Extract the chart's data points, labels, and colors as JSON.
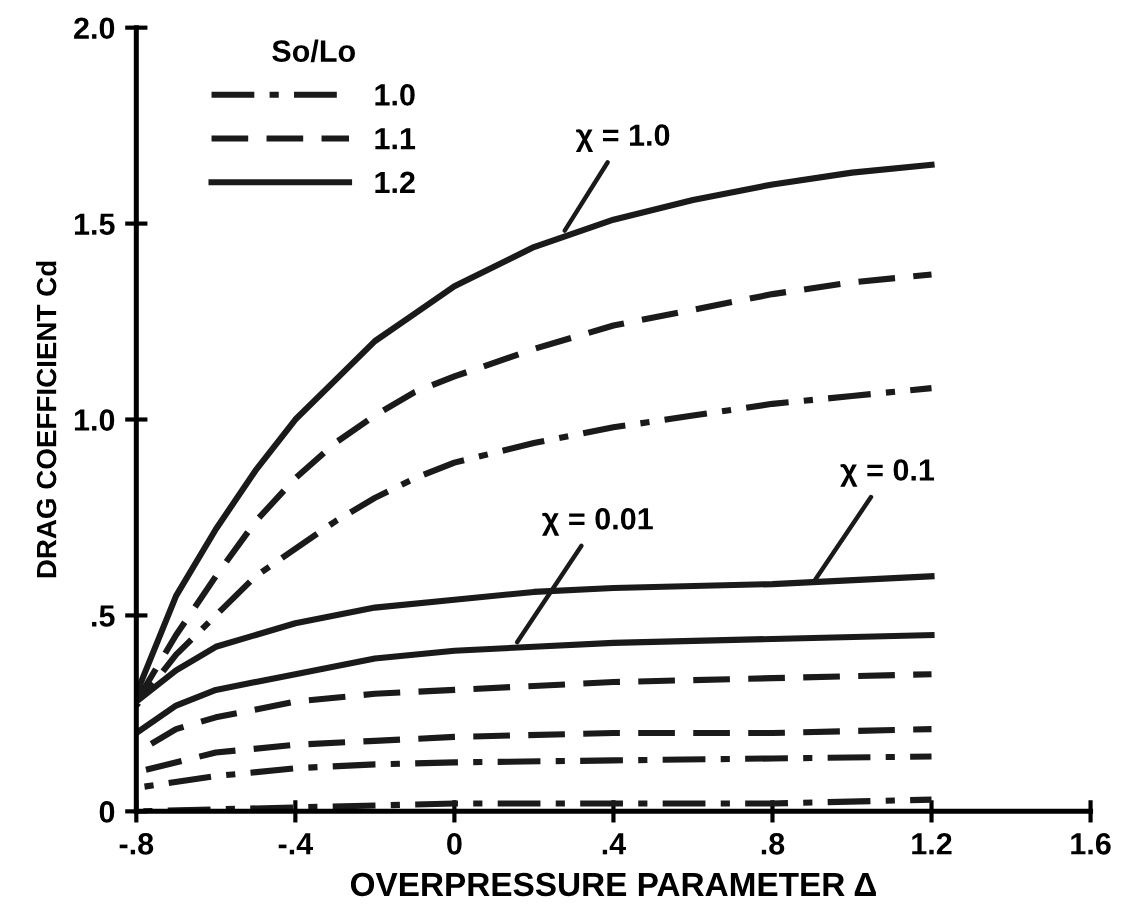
{
  "chart_data": {
    "type": "line",
    "xlabel": "OVERPRESSURE PARAMETER Δ",
    "ylabel": "DRAG COEFFICIENT Cd",
    "legend_title": "So/Lo",
    "legend": "top left",
    "grid": false,
    "marker": "none",
    "xlim": [
      -0.8,
      1.6
    ],
    "xticks": [
      {
        "value": -0.8,
        "label": "-.8"
      },
      {
        "value": -0.4,
        "label": "-.4"
      },
      0,
      {
        "value": 0.4,
        "label": ".4"
      },
      {
        "value": 0.8,
        "label": ".8"
      },
      1.2,
      1.6
    ],
    "ylim": [
      0,
      2.0
    ],
    "yticks": [
      0,
      {
        "value": 0.5,
        "label": ".5"
      },
      {
        "value": 1.0,
        "label": "1.0"
      },
      1.5,
      {
        "value": 2.0,
        "label": "2.0"
      }
    ],
    "series": [
      {
        "name": "1.0",
        "color": "#1a1a1a",
        "line_style": "dashdot",
        "x": [
          -0.8,
          -0.7,
          -0.6,
          -0.5,
          -0.4,
          -0.3,
          -0.2,
          -0.1,
          0,
          0.2,
          0.4,
          0.6,
          0.8,
          1.0,
          1.2
        ],
        "values": [
          0.27,
          0.4,
          0.5,
          0.6,
          0.67,
          0.74,
          0.8,
          0.85,
          0.89,
          0.94,
          0.98,
          1.01,
          1.04,
          1.06,
          1.08
        ]
      },
      {
        "name": "1.1",
        "color": "#1a1a1a",
        "line_style": "dashed",
        "x": [
          -0.8,
          -0.7,
          -0.6,
          -0.5,
          -0.4,
          -0.3,
          -0.2,
          -0.1,
          0,
          0.2,
          0.4,
          0.6,
          0.8,
          1.0,
          1.2
        ],
        "values": [
          0.28,
          0.45,
          0.6,
          0.74,
          0.85,
          0.94,
          1.01,
          1.07,
          1.11,
          1.18,
          1.24,
          1.28,
          1.32,
          1.35,
          1.37
        ]
      },
      {
        "name": "1.2",
        "color": "#1a1a1a",
        "line_style": "solid",
        "x": [
          -0.8,
          -0.7,
          -0.6,
          -0.5,
          -0.4,
          -0.3,
          -0.2,
          -0.1,
          0,
          0.2,
          0.4,
          0.6,
          0.8,
          1.0,
          1.2
        ],
        "values": [
          0.3,
          0.55,
          0.72,
          0.87,
          1.0,
          1.1,
          1.2,
          1.27,
          1.34,
          1.44,
          1.51,
          1.56,
          1.6,
          1.63,
          1.65
        ]
      },
      {
        "color": "#1a1a1a",
        "line_style": "solid",
        "x": [
          -0.8,
          -0.7,
          -0.6,
          -0.4,
          -0.2,
          0,
          0.2,
          0.4,
          0.8,
          1.2
        ],
        "values": [
          0.28,
          0.36,
          0.42,
          0.48,
          0.52,
          0.54,
          0.56,
          0.57,
          0.58,
          0.6
        ]
      },
      {
        "color": "#1a1a1a",
        "line_style": "solid",
        "x": [
          -0.8,
          -0.7,
          -0.6,
          -0.4,
          -0.2,
          0,
          0.2,
          0.4,
          0.8,
          1.2
        ],
        "values": [
          0.2,
          0.27,
          0.31,
          0.35,
          0.39,
          0.41,
          0.42,
          0.43,
          0.44,
          0.45
        ]
      },
      {
        "color": "#1a1a1a",
        "line_style": "dashed",
        "x": [
          -0.8,
          -0.7,
          -0.6,
          -0.4,
          -0.2,
          0,
          0.2,
          0.4,
          0.8,
          1.2
        ],
        "values": [
          0.15,
          0.21,
          0.24,
          0.28,
          0.3,
          0.31,
          0.32,
          0.33,
          0.34,
          0.35
        ]
      },
      {
        "color": "#1a1a1a",
        "line_style": "dashed",
        "x": [
          -0.8,
          -0.6,
          -0.4,
          -0.2,
          0,
          0.4,
          0.8,
          1.2
        ],
        "values": [
          0.1,
          0.15,
          0.17,
          0.18,
          0.19,
          0.2,
          0.2,
          0.21
        ]
      },
      {
        "color": "#1a1a1a",
        "line_style": "dashdot",
        "x": [
          -0.8,
          -0.6,
          -0.4,
          -0.2,
          0,
          0.4,
          0.8,
          1.2
        ],
        "values": [
          0.06,
          0.09,
          0.11,
          0.12,
          0.125,
          0.13,
          0.135,
          0.14
        ]
      },
      {
        "color": "#1a1a1a",
        "line_style": "dashdot",
        "x": [
          -0.8,
          -0.4,
          0,
          0.4,
          0.8,
          1.2
        ],
        "values": [
          0.0,
          0.01,
          0.02,
          0.02,
          0.02,
          0.03
        ]
      }
    ],
    "annotations": [
      {
        "text": "χ = 1.0",
        "x": 0.27,
        "y": 1.47
      },
      {
        "text": "χ = 0.01",
        "x": 0.15,
        "y": 0.42
      },
      {
        "text": "χ = 0.1",
        "x": 0.9,
        "y": 0.58
      }
    ]
  }
}
